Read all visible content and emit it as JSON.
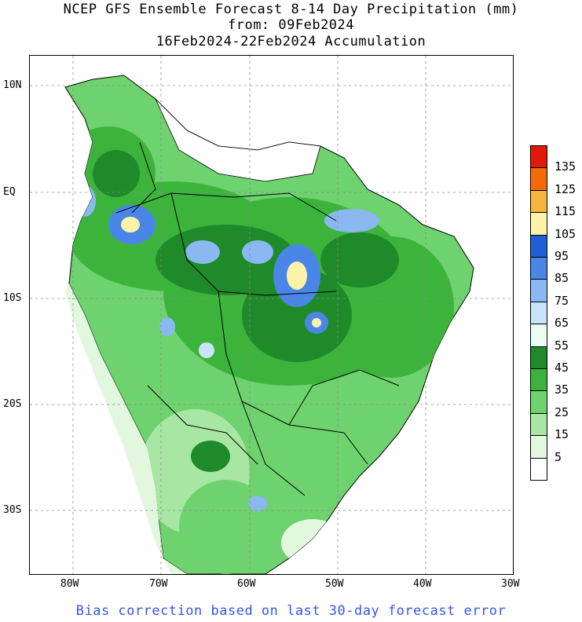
{
  "title": {
    "line1": "NCEP GFS Ensemble Forecast 8-14 Day Precipitation (mm)",
    "line2": "from: 09Feb2024",
    "line3": "16Feb2024-22Feb2024 Accumulation"
  },
  "axes": {
    "lat_labels": [
      "10N",
      "EQ",
      "10S",
      "20S",
      "30S"
    ],
    "lon_labels": [
      "80W",
      "70W",
      "60W",
      "50W",
      "40W",
      "30W"
    ]
  },
  "legend": {
    "labels": [
      "135",
      "125",
      "115",
      "105",
      "95",
      "85",
      "75",
      "65",
      "55",
      "45",
      "35",
      "25",
      "15",
      "5"
    ],
    "colors": [
      "#e01a0a",
      "#f46a0a",
      "#f5b43c",
      "#fdf3a8",
      "#1f5ed6",
      "#4a86e8",
      "#8ab8f0",
      "#c8e4f8",
      "#e8fcf2",
      "#1f8a2a",
      "#3cb43c",
      "#6ed26e",
      "#a8e6a4",
      "#e2f8de",
      "#ffffff"
    ]
  },
  "footer": "Bias correction based on last 30-day forecast error"
}
